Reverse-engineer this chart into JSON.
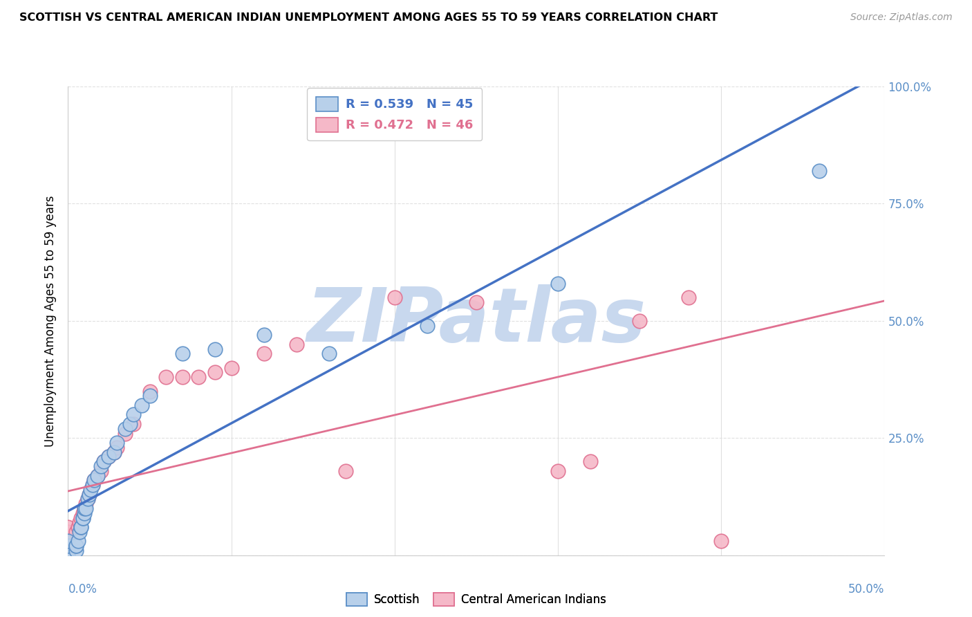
{
  "title": "SCOTTISH VS CENTRAL AMERICAN INDIAN UNEMPLOYMENT AMONG AGES 55 TO 59 YEARS CORRELATION CHART",
  "source": "Source: ZipAtlas.com",
  "ylabel": "Unemployment Among Ages 55 to 59 years",
  "xlim": [
    0.0,
    0.5
  ],
  "ylim": [
    0.0,
    1.0
  ],
  "yticks": [
    0.0,
    0.25,
    0.5,
    0.75,
    1.0
  ],
  "ytick_labels": [
    "",
    "25.0%",
    "50.0%",
    "75.0%",
    "100.0%"
  ],
  "legend1_R": "0.539",
  "legend1_N": "45",
  "legend2_R": "0.472",
  "legend2_N": "46",
  "blue_face": "#b8d0ea",
  "blue_edge": "#5b8fc7",
  "pink_face": "#f5b8c8",
  "pink_edge": "#e07090",
  "blue_line": "#4472c4",
  "pink_line": "#e07090",
  "watermark": "ZIPatlas",
  "watermark_color": "#c8d8ee",
  "scottish_x": [
    0.0,
    0.0,
    0.0,
    0.0,
    0.0,
    0.0,
    0.0,
    0.0,
    0.0,
    0.0,
    0.005,
    0.005,
    0.005,
    0.006,
    0.007,
    0.008,
    0.008,
    0.009,
    0.009,
    0.01,
    0.01,
    0.011,
    0.012,
    0.013,
    0.014,
    0.015,
    0.016,
    0.018,
    0.02,
    0.022,
    0.025,
    0.028,
    0.03,
    0.035,
    0.038,
    0.04,
    0.045,
    0.05,
    0.07,
    0.09,
    0.12,
    0.16,
    0.22,
    0.3,
    0.46
  ],
  "scottish_y": [
    0.0,
    0.0,
    0.0,
    0.0,
    0.0,
    0.0,
    0.01,
    0.01,
    0.02,
    0.03,
    0.01,
    0.02,
    0.02,
    0.03,
    0.05,
    0.06,
    0.06,
    0.08,
    0.08,
    0.09,
    0.1,
    0.1,
    0.12,
    0.13,
    0.14,
    0.15,
    0.16,
    0.17,
    0.19,
    0.2,
    0.21,
    0.22,
    0.24,
    0.27,
    0.28,
    0.3,
    0.32,
    0.34,
    0.43,
    0.44,
    0.47,
    0.43,
    0.49,
    0.58,
    0.82
  ],
  "pink_x": [
    0.0,
    0.0,
    0.0,
    0.0,
    0.0,
    0.0,
    0.0,
    0.0,
    0.0,
    0.0,
    0.005,
    0.006,
    0.007,
    0.008,
    0.009,
    0.01,
    0.01,
    0.011,
    0.012,
    0.013,
    0.015,
    0.016,
    0.018,
    0.02,
    0.022,
    0.025,
    0.028,
    0.03,
    0.035,
    0.04,
    0.05,
    0.06,
    0.07,
    0.08,
    0.09,
    0.1,
    0.12,
    0.14,
    0.17,
    0.2,
    0.25,
    0.3,
    0.32,
    0.35,
    0.38,
    0.4
  ],
  "pink_y": [
    0.0,
    0.0,
    0.0,
    0.0,
    0.01,
    0.02,
    0.03,
    0.04,
    0.05,
    0.06,
    0.05,
    0.06,
    0.07,
    0.08,
    0.09,
    0.1,
    0.1,
    0.11,
    0.12,
    0.13,
    0.15,
    0.16,
    0.17,
    0.18,
    0.2,
    0.21,
    0.22,
    0.23,
    0.26,
    0.28,
    0.35,
    0.38,
    0.38,
    0.38,
    0.39,
    0.4,
    0.43,
    0.45,
    0.18,
    0.55,
    0.54,
    0.18,
    0.2,
    0.5,
    0.55,
    0.03
  ],
  "grid_color": "#e0e0e0",
  "spine_color": "#cccccc"
}
